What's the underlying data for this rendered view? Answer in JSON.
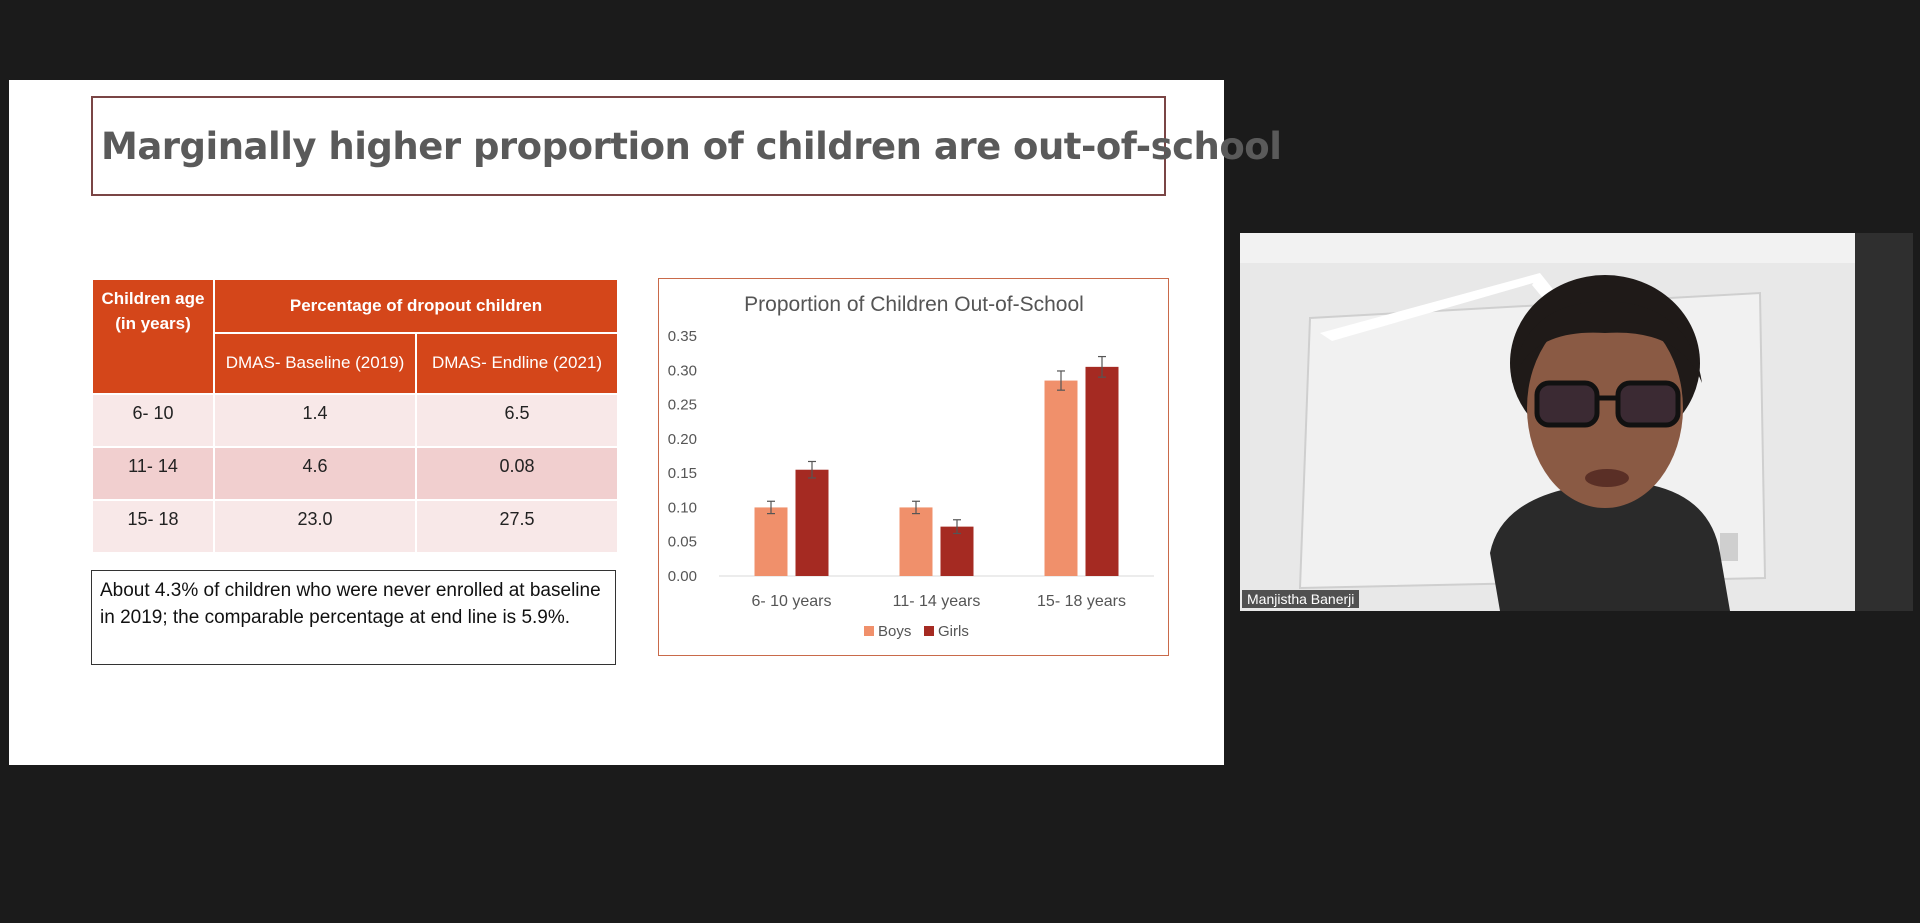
{
  "slide": {
    "title": "Marginally higher proportion of children are out-of-school",
    "table": {
      "age_header": "Children age (in years)",
      "group_header": "Percentage of dropout children",
      "col_baseline": "DMAS- Baseline (2019)",
      "col_endline": "DMAS- Endline (2021)",
      "rows": [
        {
          "age": "6- 10",
          "baseline": "1.4",
          "endline": "6.5"
        },
        {
          "age": "11- 14",
          "baseline": "4.6",
          "endline": "0.08"
        },
        {
          "age": "15- 18",
          "baseline": "23.0",
          "endline": "27.5"
        }
      ]
    },
    "note": "About 4.3% of children who were never enrolled at baseline in 2019; the comparable percentage at end line is 5.9%."
  },
  "chart_data": {
    "type": "bar",
    "title": "Proportion of Children Out-of-School",
    "categories": [
      "6- 10 years",
      "11- 14 years",
      "15- 18 years"
    ],
    "series": [
      {
        "name": "Boys",
        "values": [
          0.1,
          0.1,
          0.285
        ],
        "errors": [
          0.009,
          0.009,
          0.014
        ],
        "color": "#f0906b"
      },
      {
        "name": "Girls",
        "values": [
          0.155,
          0.072,
          0.305
        ],
        "errors": [
          0.012,
          0.01,
          0.015
        ],
        "color": "#a52a22"
      }
    ],
    "ylim": [
      0,
      0.35
    ],
    "yticks": [
      "0.00",
      "0.05",
      "0.10",
      "0.15",
      "0.20",
      "0.25",
      "0.30",
      "0.35"
    ],
    "legend_position": "bottom",
    "grid": false
  },
  "video": {
    "participant_name": "Manjistha Banerji"
  }
}
